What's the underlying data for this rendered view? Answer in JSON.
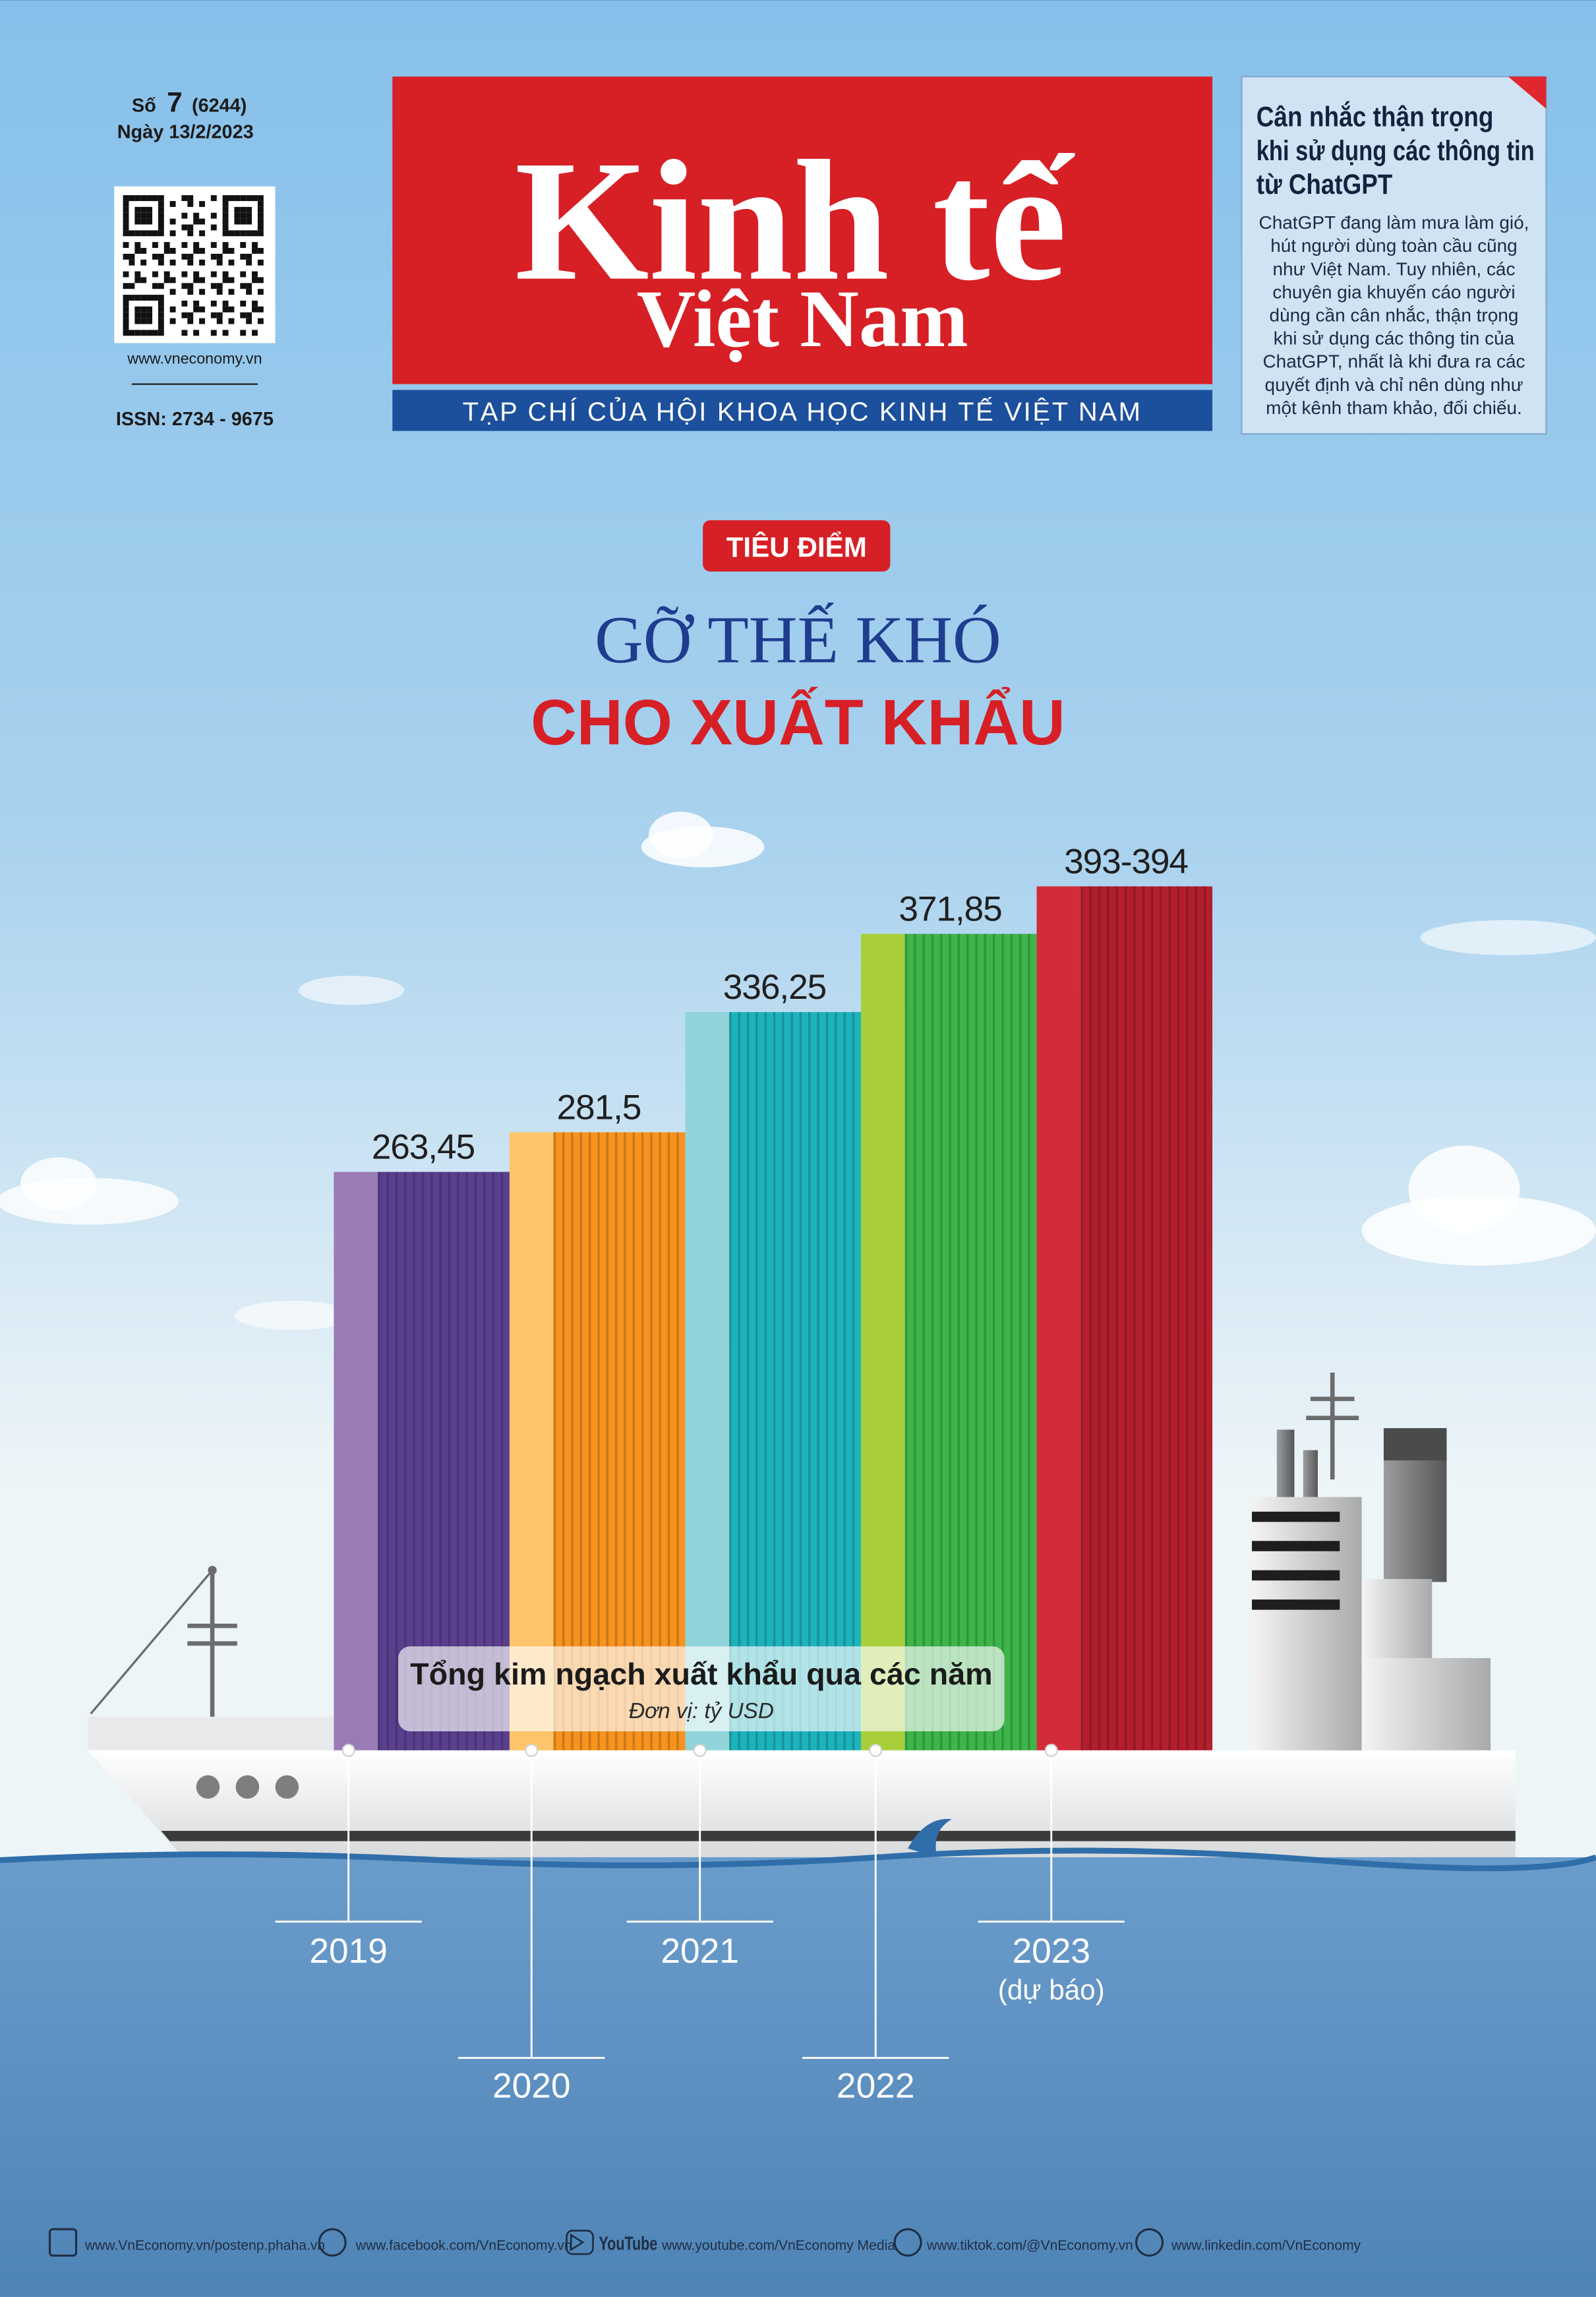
{
  "masthead": {
    "issue_label": "Số",
    "issue_number": "7",
    "issue_code": "(6244)",
    "date": "Ngày 13/2/2023",
    "website": "www.vneconomy.vn",
    "issn": "ISSN: 2734 - 9675",
    "title_line1": "Kinh tế",
    "title_line2": "Việt Nam",
    "tagline": "TẠP CHÍ CỦA HỘI KHOA HỌC KINH TẾ VIỆT NAM"
  },
  "sidebar": {
    "title_lines": [
      "Cân nhắc thận trọng",
      "khi sử dụng các thông tin",
      "từ ChatGPT"
    ],
    "body_lines": [
      "ChatGPT đang làm mưa làm gió,",
      "hút người dùng toàn cầu cũng",
      "như Việt Nam. Tuy nhiên, các",
      "chuyên gia khuyến cáo người",
      "dùng cần cân nhắc, thận trọng",
      "khi sử dụng các thông tin của",
      "ChatGPT, nhất là khi đưa ra các",
      "quyết định và chỉ nên dùng như",
      "một kênh tham khảo, đối chiếu."
    ]
  },
  "feature": {
    "tag": "TIÊU ĐIỂM",
    "headline_line1": "GỠ THẾ KHÓ",
    "headline_line2": "CHO XUẤT KHẨU"
  },
  "chart_data": {
    "type": "bar",
    "title": "Tổng kim ngạch xuất khẩu qua các năm",
    "subtitle": "Đơn vị: tỷ USD",
    "categories": [
      "2019",
      "2020",
      "2021",
      "2022",
      "2023"
    ],
    "category_notes": [
      null,
      null,
      null,
      null,
      "(dự báo)"
    ],
    "values": [
      263.45,
      281.5,
      336.25,
      371.85,
      393.5
    ],
    "value_labels": [
      "263,45",
      "281,5",
      "336,25",
      "371,85",
      "393-394"
    ],
    "colors": [
      "#5a3f8e",
      "#f7931e",
      "#1db3bd",
      "#3db54a",
      "#b31f2d"
    ],
    "highlight_colors": [
      "#9a7bb6",
      "#fdc46a",
      "#90d4da",
      "#a8cf3a",
      "#d22b3a"
    ]
  },
  "footer": {
    "links": [
      "www.VnEconomy.vn/postenp.phaha.vn",
      "www.facebook.com/VnEconomy.vn",
      "www.youtube.com/VnEconomy Media",
      "www.tiktok.com/@VnEconomy.vn",
      "www.linkedin.com/VnEconomy"
    ],
    "youtube_label": "YouTube"
  }
}
